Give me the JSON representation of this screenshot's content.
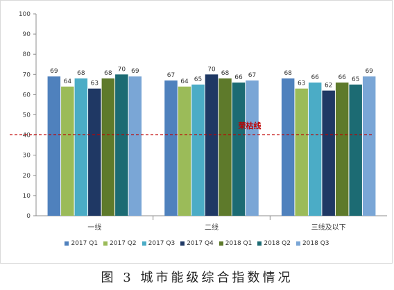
{
  "chart_data": {
    "type": "bar",
    "categories": [
      "一线",
      "二线",
      "三线及以下"
    ],
    "series": [
      {
        "name": "2017 Q1",
        "color": "#4f81bd",
        "values": [
          69,
          67,
          68
        ]
      },
      {
        "name": "2017 Q2",
        "color": "#9bbb59",
        "values": [
          64,
          64,
          63
        ]
      },
      {
        "name": "2017 Q3",
        "color": "#4bacc6",
        "values": [
          68,
          65,
          66
        ]
      },
      {
        "name": "2017 Q4",
        "color": "#1f3864",
        "values": [
          63,
          70,
          62
        ]
      },
      {
        "name": "2018 Q1",
        "color": "#5e7a2b",
        "values": [
          68,
          68,
          66
        ]
      },
      {
        "name": "2018 Q2",
        "color": "#1c6b73",
        "values": [
          70,
          66,
          65
        ]
      },
      {
        "name": "2018 Q3",
        "color": "#7aa6d6",
        "values": [
          69,
          67,
          69
        ]
      }
    ],
    "ylim": [
      0,
      100
    ],
    "yticks": [
      0,
      10,
      20,
      30,
      40,
      50,
      60,
      70,
      80,
      90,
      100
    ],
    "reference_line": {
      "label": "荣枯线",
      "value": 40,
      "color": "#c00000"
    },
    "legend_position": "bottom",
    "grid": false
  },
  "caption": "图 3   城市能级综合指数情况"
}
